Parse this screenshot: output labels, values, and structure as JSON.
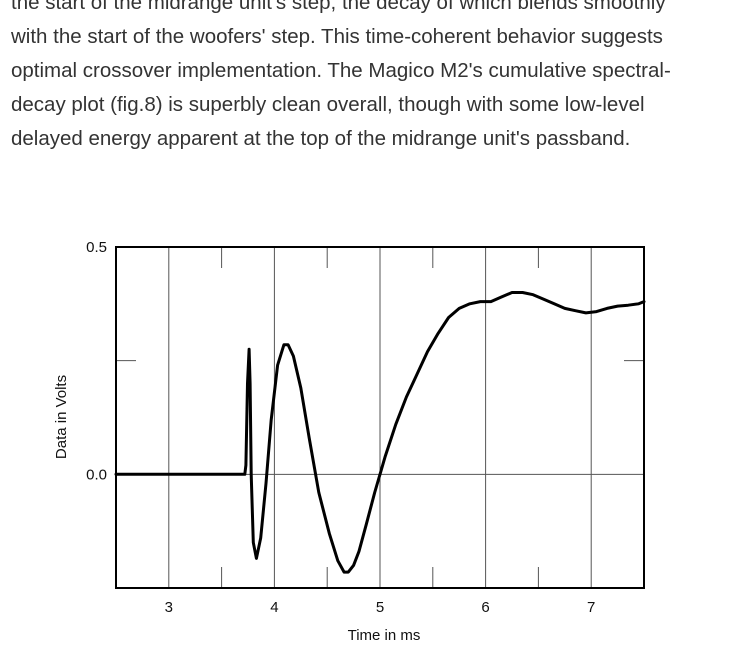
{
  "article": {
    "lines": [
      "the start of the midrange unit's step, the decay of which blends smoothly",
      "with the start of the woofers' step. This time-coherent behavior suggests",
      "optimal crossover implementation. The Magico M2's cumulative spectral-",
      "decay plot (fig.8) is superbly clean overall, though with some low-level",
      "delayed energy apparent at the top of the midrange unit's passband."
    ]
  },
  "chart_data": {
    "type": "line",
    "title": "",
    "xlabel": "Time in ms",
    "ylabel": "Data in Volts",
    "xlim": [
      2.5,
      7.5
    ],
    "ylim": [
      -0.25,
      0.5
    ],
    "x_ticks": [
      3,
      4,
      5,
      6,
      7
    ],
    "x_tick_labels": [
      "3",
      "4",
      "5",
      "6",
      "7"
    ],
    "y_ticks": [
      0.0,
      0.5
    ],
    "y_tick_labels": [
      "0.0",
      "0.5"
    ],
    "grid": true,
    "series": [
      {
        "name": "",
        "color": "#000000",
        "x": [
          2.5,
          3.0,
          3.5,
          3.72,
          3.73,
          3.745,
          3.76,
          3.77,
          3.78,
          3.8,
          3.83,
          3.87,
          3.92,
          3.97,
          4.03,
          4.09,
          4.13,
          4.18,
          4.25,
          4.33,
          4.42,
          4.52,
          4.6,
          4.66,
          4.7,
          4.75,
          4.8,
          4.87,
          4.95,
          5.05,
          5.15,
          5.25,
          5.35,
          5.45,
          5.55,
          5.65,
          5.75,
          5.85,
          5.95,
          6.05,
          6.15,
          6.25,
          6.35,
          6.45,
          6.55,
          6.65,
          6.75,
          6.85,
          6.95,
          7.05,
          7.15,
          7.25,
          7.35,
          7.45,
          7.5
        ],
        "y": [
          0.0,
          0.0,
          0.0,
          0.0,
          0.02,
          0.2,
          0.275,
          0.2,
          0.0,
          -0.15,
          -0.185,
          -0.14,
          -0.02,
          0.12,
          0.24,
          0.285,
          0.285,
          0.26,
          0.19,
          0.08,
          -0.04,
          -0.13,
          -0.19,
          -0.215,
          -0.215,
          -0.2,
          -0.17,
          -0.11,
          -0.04,
          0.04,
          0.11,
          0.17,
          0.22,
          0.27,
          0.31,
          0.345,
          0.365,
          0.375,
          0.38,
          0.38,
          0.39,
          0.4,
          0.4,
          0.395,
          0.385,
          0.375,
          0.365,
          0.36,
          0.355,
          0.358,
          0.365,
          0.37,
          0.372,
          0.375,
          0.38
        ]
      }
    ]
  }
}
